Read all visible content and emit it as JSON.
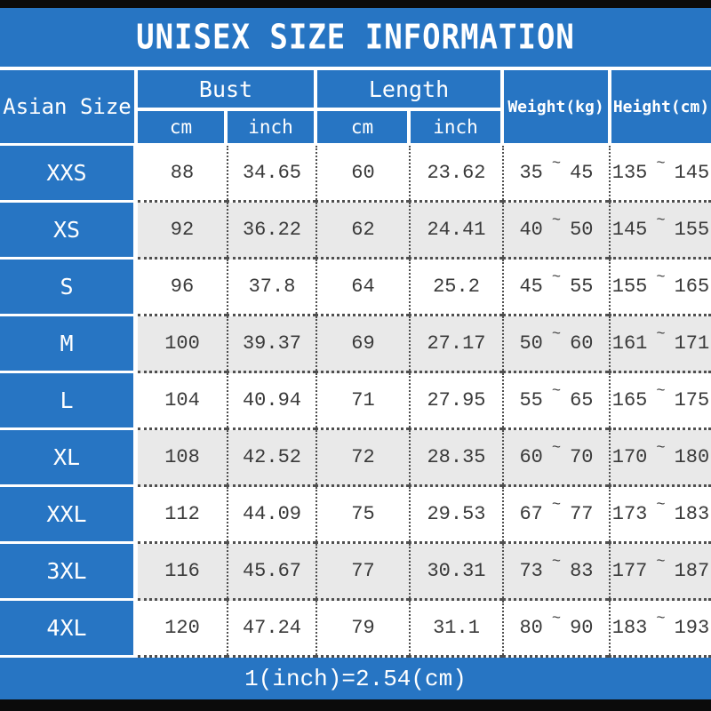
{
  "title": "UNISEX SIZE INFORMATION",
  "footer_note": "1(inch)=2.54(cm)",
  "symbols": {
    "tilde": "~"
  },
  "colors": {
    "accent_blue": "#2775c3",
    "row_alt_gray": "#e9e9e9",
    "bar_black": "#0b0b0b",
    "data_text": "#3a3a3a"
  },
  "header": {
    "asian_size": "Asian Size",
    "bust": "Bust",
    "length": "Length",
    "cm": "cm",
    "inch": "inch",
    "weight": "Weight(kg)",
    "height": "Height(cm)"
  },
  "rows": [
    {
      "size": "XXS",
      "bust_cm": "88",
      "bust_inch": "34.65",
      "length_cm": "60",
      "length_inch": "23.62",
      "weight_min": "35",
      "weight_max": "45",
      "height_min": "135",
      "height_max": "145"
    },
    {
      "size": "XS",
      "bust_cm": "92",
      "bust_inch": "36.22",
      "length_cm": "62",
      "length_inch": "24.41",
      "weight_min": "40",
      "weight_max": "50",
      "height_min": "145",
      "height_max": "155"
    },
    {
      "size": "S",
      "bust_cm": "96",
      "bust_inch": "37.8",
      "length_cm": "64",
      "length_inch": "25.2",
      "weight_min": "45",
      "weight_max": "55",
      "height_min": "155",
      "height_max": "165"
    },
    {
      "size": "M",
      "bust_cm": "100",
      "bust_inch": "39.37",
      "length_cm": "69",
      "length_inch": "27.17",
      "weight_min": "50",
      "weight_max": "60",
      "height_min": "161",
      "height_max": "171"
    },
    {
      "size": "L",
      "bust_cm": "104",
      "bust_inch": "40.94",
      "length_cm": "71",
      "length_inch": "27.95",
      "weight_min": "55",
      "weight_max": "65",
      "height_min": "165",
      "height_max": "175"
    },
    {
      "size": "XL",
      "bust_cm": "108",
      "bust_inch": "42.52",
      "length_cm": "72",
      "length_inch": "28.35",
      "weight_min": "60",
      "weight_max": "70",
      "height_min": "170",
      "height_max": "180"
    },
    {
      "size": "XXL",
      "bust_cm": "112",
      "bust_inch": "44.09",
      "length_cm": "75",
      "length_inch": "29.53",
      "weight_min": "67",
      "weight_max": "77",
      "height_min": "173",
      "height_max": "183"
    },
    {
      "size": "3XL",
      "bust_cm": "116",
      "bust_inch": "45.67",
      "length_cm": "77",
      "length_inch": "30.31",
      "weight_min": "73",
      "weight_max": "83",
      "height_min": "177",
      "height_max": "187"
    },
    {
      "size": "4XL",
      "bust_cm": "120",
      "bust_inch": "47.24",
      "length_cm": "79",
      "length_inch": "31.1",
      "weight_min": "80",
      "weight_max": "90",
      "height_min": "183",
      "height_max": "193"
    }
  ]
}
